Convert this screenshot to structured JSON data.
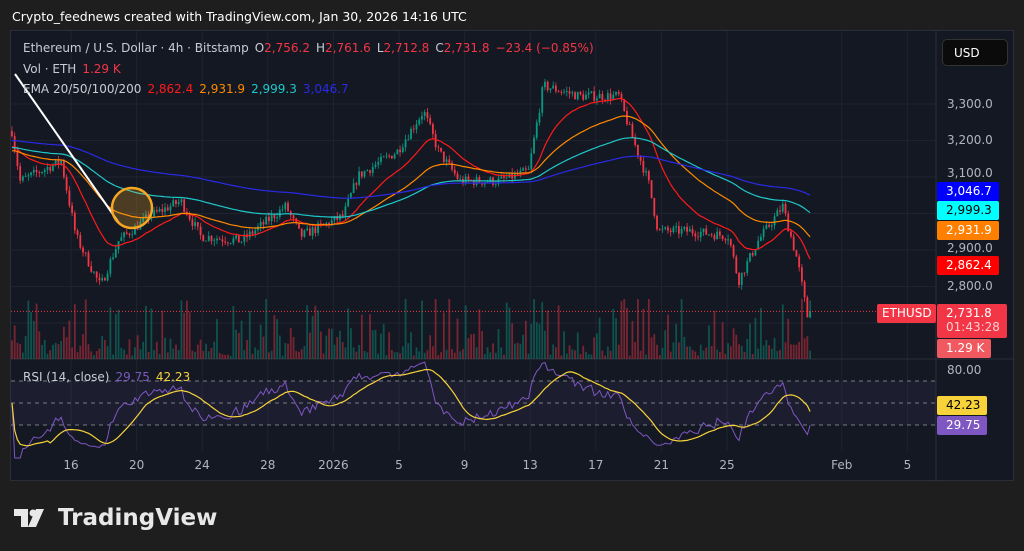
{
  "credit": "Crypto_feednews created with TradingView.com, Jan 30, 2026 14:16 UTC",
  "legend": {
    "symbol": "Ethereum / U.S. Dollar · 4h · Bitstamp",
    "o_label": "O",
    "o": "2,756.2",
    "h_label": "H",
    "h": "2,761.6",
    "l_label": "L",
    "l": "2,712.8",
    "c_label": "C",
    "c": "2,731.8",
    "change": "−23.4 (−0.85%)",
    "vol_label": "Vol · ETH",
    "vol": "1.29 K",
    "ema_label": "EMA 20/50/100/200",
    "ema20": "2,862.4",
    "ema50": "2,931.9",
    "ema100": "2,999.3",
    "ema200": "3,046.7"
  },
  "currency_button": "USD",
  "price_axis": [
    "3,300.0",
    "3,200.0",
    "3,100.0",
    "2,900.0",
    "2,800.0"
  ],
  "tags": {
    "ema200": "3,046.7",
    "ema100": "2,999.3",
    "ema50": "2,931.9",
    "ema20": "2,862.4",
    "symbol": "ETHUSD",
    "price": "2,731.8",
    "countdown": "01:43:28",
    "volume": "1.29 K"
  },
  "rsi": {
    "label": "RSI (14, close)",
    "value": "29.75",
    "ma": "42.23",
    "axis": "80.00",
    "tag_ma": "42.23",
    "tag_value": "29.75"
  },
  "date_axis": [
    "16",
    "20",
    "24",
    "28",
    "2026",
    "5",
    "9",
    "13",
    "17",
    "21",
    "25",
    "Feb",
    "5"
  ],
  "colors": {
    "up": "#089981",
    "down": "#f23645",
    "ema20": "#ff1a1a",
    "ema50": "#ff8a00",
    "ema100": "#1fc8c8",
    "ema200": "#2a2ae6",
    "rsi": "#7e57c2",
    "rsi_ma": "#f7d23a"
  },
  "logo": "TradingView",
  "chart_data": {
    "type": "candlestick",
    "timeframe": "4h",
    "ylim": [
      2650,
      3400
    ],
    "price_keypoints_day_close": [
      [
        12.4,
        3226
      ],
      [
        12.9,
        3089
      ],
      [
        15.4,
        3144
      ],
      [
        16.3,
        2938
      ],
      [
        17.8,
        2800
      ],
      [
        18.9,
        2925
      ],
      [
        20.8,
        2993
      ],
      [
        22.7,
        3034
      ],
      [
        23.9,
        2938
      ],
      [
        26.4,
        2925
      ],
      [
        29.1,
        3020
      ],
      [
        30.0,
        2938
      ],
      [
        32.6,
        2993
      ],
      [
        33.5,
        3103
      ],
      [
        35.9,
        3171
      ],
      [
        37.5,
        3281
      ],
      [
        38.4,
        3171
      ],
      [
        39.7,
        3089
      ],
      [
        42.1,
        3089
      ],
      [
        43.9,
        3116
      ],
      [
        44.8,
        3350
      ],
      [
        47.0,
        3322
      ],
      [
        49.4,
        3322
      ],
      [
        50.3,
        3199
      ],
      [
        51.2,
        3089
      ],
      [
        51.8,
        2952
      ],
      [
        53.7,
        2952
      ],
      [
        56.1,
        2938
      ],
      [
        56.7,
        2815
      ],
      [
        57.9,
        2925
      ],
      [
        59.4,
        3020
      ],
      [
        60.3,
        2870
      ],
      [
        60.9,
        2719
      ],
      [
        61.2,
        2731.8
      ]
    ],
    "ema_periods": [
      20,
      50,
      100,
      200
    ],
    "ema_seeds": [
      3180,
      3170,
      3180,
      3200
    ],
    "last": {
      "open": 2756.2,
      "high": 2761.6,
      "low": 2712.8,
      "close": 2731.8
    },
    "rsi_levels": [
      70,
      50,
      30
    ]
  }
}
